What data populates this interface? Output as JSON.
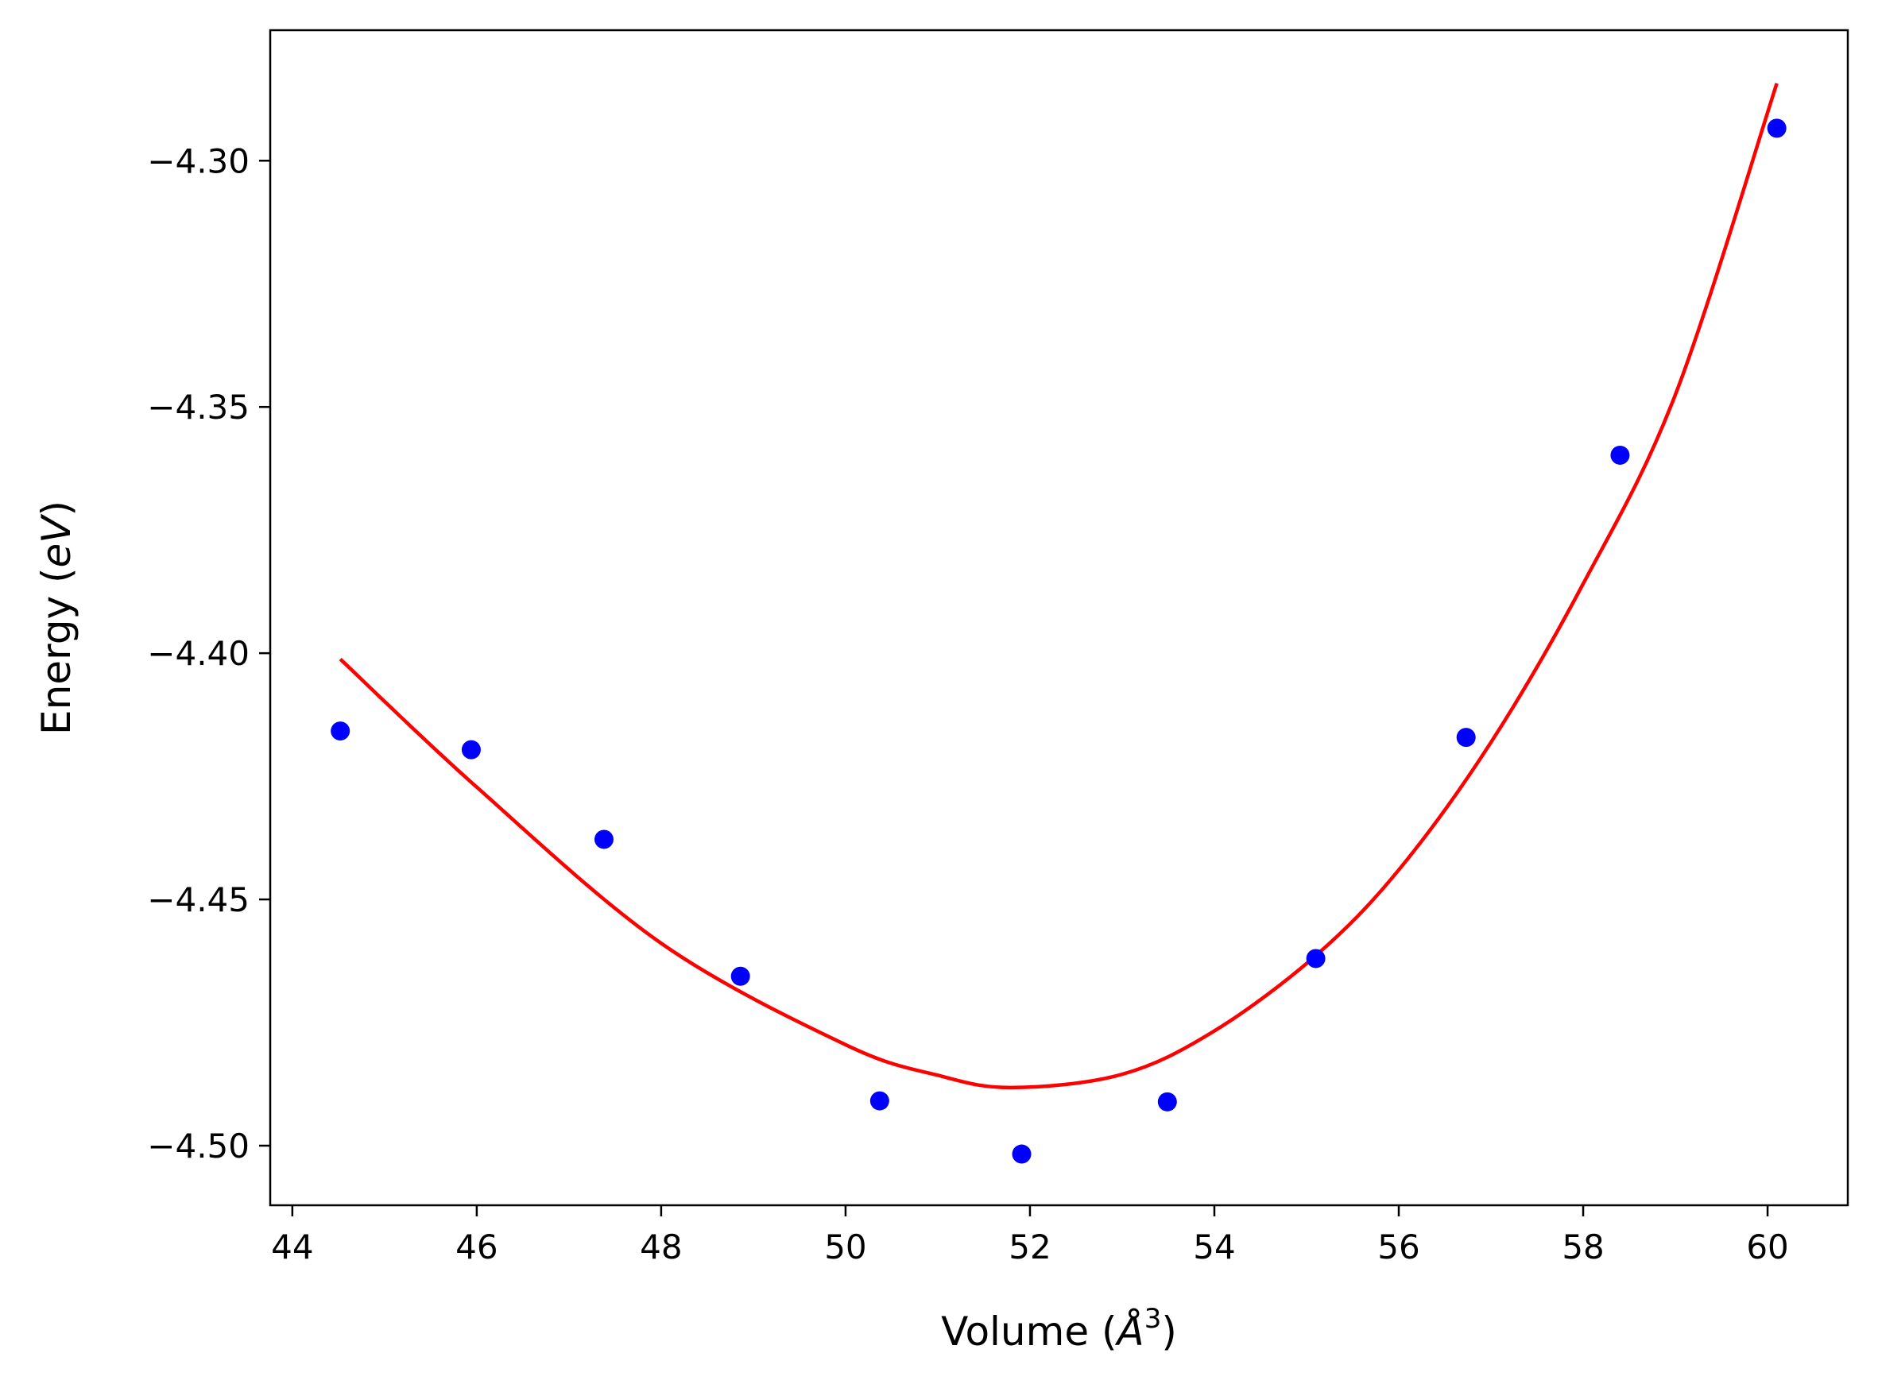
{
  "chart_data": {
    "type": "scatter",
    "title": "",
    "xlabel_prefix": "Volume (",
    "xlabel_symbol": "Å",
    "xlabel_sup": "3",
    "xlabel_suffix": ")",
    "ylabel_prefix": "Energy (",
    "ylabel_unit": "eV",
    "ylabel_suffix": ")",
    "xlim": [
      43.76,
      60.87
    ],
    "ylim": [
      -4.5121,
      -4.2735
    ],
    "x_ticks": [
      44,
      46,
      48,
      50,
      52,
      54,
      56,
      58,
      60
    ],
    "x_tick_labels": [
      "44",
      "46",
      "48",
      "50",
      "52",
      "54",
      "56",
      "58",
      "60"
    ],
    "y_ticks": [
      -4.3,
      -4.35,
      -4.4,
      -4.45,
      -4.5
    ],
    "y_tick_labels": [
      "−4.30",
      "−4.35",
      "−4.40",
      "−4.45",
      "−4.50"
    ],
    "grid": false,
    "series": [
      {
        "kind": "scatter",
        "color": "#0000ff",
        "x": [
          44.52,
          45.94,
          47.38,
          48.86,
          50.37,
          51.91,
          53.49,
          55.1,
          56.73,
          58.4,
          60.1
        ],
        "y": [
          -4.4158,
          -4.4196,
          -4.4378,
          -4.4656,
          -4.4909,
          -4.5017,
          -4.4911,
          -4.462,
          -4.4171,
          -4.3598,
          -4.2934
        ]
      },
      {
        "kind": "line",
        "color": "#ff0000",
        "x": [
          44.52,
          46.0,
          48.0,
          50.0,
          51.0,
          51.8,
          53.0,
          54.0,
          55.1,
          56.0,
          57.0,
          58.0,
          59.0,
          60.1
        ],
        "y": [
          -4.4012,
          -4.4272,
          -4.4589,
          -4.4795,
          -4.4857,
          -4.4882,
          -4.4855,
          -4.4767,
          -4.4614,
          -4.444,
          -4.4181,
          -4.3859,
          -4.3475,
          -4.2843
        ]
      }
    ]
  }
}
